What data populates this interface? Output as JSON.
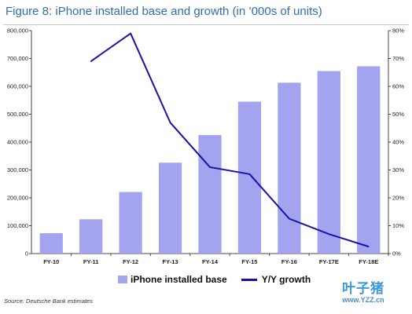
{
  "figure": {
    "title": "Figure 8: iPhone installed base and growth (in ’000s of units)",
    "source": "Source: Deutsche Bank estimates"
  },
  "watermark": {
    "text": "叶子猪",
    "url": "www.YZZ.cn"
  },
  "legend": {
    "bar_label": "iPhone installed base",
    "line_label": "Y/Y growth"
  },
  "colors": {
    "bar": "#a3a3f0",
    "line": "#1a12a8",
    "title": "#2f6eb5"
  },
  "chart_data": {
    "type": "bar",
    "categories": [
      "FY-10",
      "FY-11",
      "FY-12",
      "FY-13",
      "FY-14",
      "FY-15",
      "FY-16",
      "FY-17E",
      "FY-18E"
    ],
    "series": [
      {
        "name": "iPhone installed base",
        "type": "bar",
        "axis": "left",
        "values": [
          73000,
          123000,
          221000,
          326000,
          425000,
          545000,
          613000,
          655000,
          672000
        ]
      },
      {
        "name": "Y/Y growth",
        "type": "line",
        "axis": "right",
        "values": [
          null,
          69,
          79,
          47,
          31,
          28.5,
          12.5,
          7,
          2.5
        ]
      }
    ],
    "y_left": {
      "ylim": [
        0,
        800000
      ],
      "ticks": [
        "0",
        "100,000",
        "200,000",
        "300,000",
        "400,000",
        "500,000",
        "600,000",
        "700,000",
        "800,000"
      ]
    },
    "y_right": {
      "ylim": [
        0,
        80
      ],
      "ticks": [
        "0%",
        "10%",
        "20%",
        "30%",
        "40%",
        "50%",
        "60%",
        "70%",
        "80%"
      ]
    },
    "grid": false,
    "legend_position": "bottom"
  }
}
